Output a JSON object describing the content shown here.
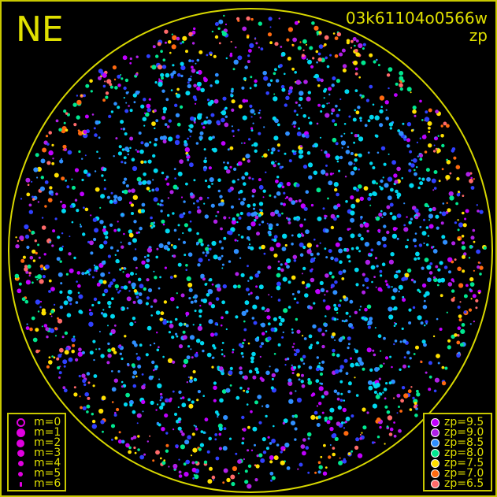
{
  "header": {
    "direction": "NE",
    "observation_id": "03k61104o0566w",
    "color_key": "zp"
  },
  "magnitude_legend": {
    "color": "#e000e0",
    "items": [
      {
        "label": "m=0",
        "symbol": "open-circle"
      },
      {
        "label": "m=1"
      },
      {
        "label": "m=2"
      },
      {
        "label": "m=3"
      },
      {
        "label": "m=4"
      },
      {
        "label": "m=5"
      },
      {
        "label": "m=6"
      }
    ]
  },
  "zp_legend": {
    "items": [
      {
        "label": "zp=9.5",
        "color": "#c000ff"
      },
      {
        "label": "zp=9.0",
        "color": "#b020e8"
      },
      {
        "label": "zp=8.5",
        "color": "#2f8fff"
      },
      {
        "label": "zp=8.0",
        "color": "#00e890"
      },
      {
        "label": "zp=7.5",
        "color": "#ffe000"
      },
      {
        "label": "zp=7.0",
        "color": "#ff6a10"
      },
      {
        "label": "zp=6.5",
        "color": "#ff6a6a"
      }
    ]
  },
  "colors": {
    "frame": "#c8c800",
    "background": "#000000"
  }
}
